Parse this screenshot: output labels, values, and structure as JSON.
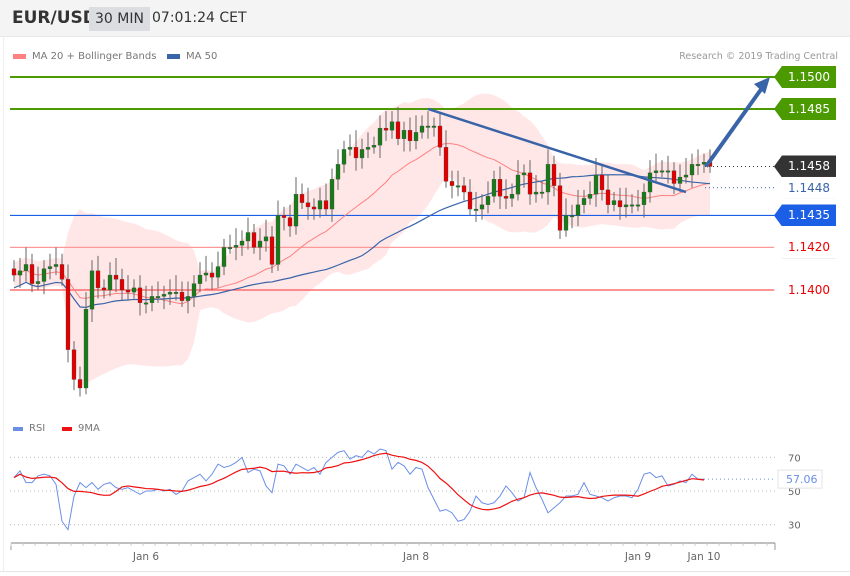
{
  "header": {
    "symbol": "EUR/USD",
    "timeframe": "30 MIN",
    "time": "07:01:24 CET"
  },
  "legend": {
    "ma20": "MA 20 + Bollinger Bands",
    "ma50": "MA 50",
    "copyright": "Research © 2019 Trading Central"
  },
  "rsi_legend": {
    "rsi": "RSI",
    "ma9": "9MA"
  },
  "colors": {
    "resistance": "#4a9a00",
    "pivot": "#1a5fe6",
    "support": "#ff5555",
    "support_light": "#ff9999",
    "up": "#1a7a1a",
    "down": "#e00000",
    "ma50": "#3a64a8",
    "ma20": "#ff8080",
    "band": "#ffe3e3",
    "rsi": "#6b8fe6",
    "rsi_ma": "#ee1111",
    "last": "#333333"
  },
  "chart_data": [
    {
      "type": "candlestick",
      "title": "EUR/USD",
      "closes": [
        1.1407,
        1.1409,
        1.1412,
        1.1403,
        1.1404,
        1.141,
        1.1411,
        1.1412,
        1.1405,
        1.1372,
        1.1358,
        1.1354,
        1.1391,
        1.1409,
        1.1401,
        1.14,
        1.1407,
        1.1405,
        1.14,
        1.1399,
        1.1401,
        1.1394,
        1.1394,
        1.1397,
        1.1397,
        1.1398,
        1.1399,
        1.1399,
        1.1395,
        1.1397,
        1.1403,
        1.1407,
        1.1408,
        1.1406,
        1.1411,
        1.142,
        1.142,
        1.1421,
        1.1423,
        1.1427,
        1.142,
        1.1423,
        1.1425,
        1.1412,
        1.1435,
        1.1434,
        1.143,
        1.1445,
        1.1441,
        1.1439,
        1.1438,
        1.1442,
        1.1438,
        1.1452,
        1.1459,
        1.1466,
        1.1467,
        1.1462,
        1.1466,
        1.1467,
        1.1468,
        1.1476,
        1.1475,
        1.1479,
        1.1471,
        1.1475,
        1.147,
        1.1474,
        1.1477,
        1.1477,
        1.1477,
        1.1467,
        1.1451,
        1.1449,
        1.1449,
        1.1446,
        1.1438,
        1.1438,
        1.144,
        1.1444,
        1.1452,
        1.1444,
        1.1443,
        1.1445,
        1.1454,
        1.1455,
        1.1445,
        1.1446,
        1.1446,
        1.1459,
        1.1449,
        1.1428,
        1.1435,
        1.1435,
        1.144,
        1.1443,
        1.1445,
        1.1454,
        1.1447,
        1.144,
        1.1442,
        1.1439,
        1.144,
        1.144,
        1.144,
        1.1446,
        1.1455,
        1.1456,
        1.1456,
        1.1456,
        1.145,
        1.1453,
        1.1454,
        1.1459,
        1.1459,
        1.146,
        1.1458
      ],
      "ylim": [
        1.134,
        1.151
      ],
      "levels": [
        {
          "label": "1.1500",
          "value": 1.15,
          "kind": "resistance"
        },
        {
          "label": "1.1485",
          "value": 1.1485,
          "kind": "resistance"
        },
        {
          "label": "1.1458",
          "value": 1.1458,
          "kind": "last"
        },
        {
          "label": "1.1448",
          "value": 1.1448,
          "kind": "ma50"
        },
        {
          "label": "1.1435",
          "value": 1.1435,
          "kind": "pivot"
        },
        {
          "label": "1.1420",
          "value": 1.142,
          "kind": "support"
        },
        {
          "label": "1.1400",
          "value": 1.14,
          "kind": "support"
        }
      ],
      "trendline": {
        "from": {
          "candle": 69,
          "price": 1.1485
        },
        "to": {
          "candle": 112,
          "price": 1.1446
        }
      },
      "forecast_arrow": {
        "from": {
          "candle": 115,
          "price": 1.1458
        },
        "to": {
          "candle": 126,
          "price": 1.15
        }
      },
      "x_ticks": [
        {
          "label": "Jan 6",
          "candle": 22
        },
        {
          "label": "Jan 8",
          "candle": 67
        },
        {
          "label": "Jan 9",
          "candle": 104
        },
        {
          "label": "Jan 10",
          "candle": 115
        }
      ]
    },
    {
      "type": "line",
      "series": [
        {
          "name": "RSI",
          "values": [
            58,
            62,
            55,
            55,
            59,
            60,
            59,
            54,
            32,
            27,
            47,
            55,
            52,
            55,
            51,
            54,
            55,
            52,
            51,
            52,
            50,
            48,
            50,
            50,
            51,
            50,
            51,
            48,
            50,
            56,
            58,
            60,
            56,
            60,
            66,
            64,
            65,
            67,
            70,
            61,
            63,
            62,
            53,
            49,
            66,
            65,
            60,
            66,
            64,
            62,
            64,
            60,
            67,
            70,
            73,
            74,
            69,
            71,
            70,
            74,
            72,
            75,
            74,
            63,
            67,
            65,
            60,
            64,
            63,
            52,
            45,
            38,
            39,
            37,
            32,
            33,
            38,
            47,
            43,
            42,
            43,
            47,
            53,
            49,
            44,
            46,
            61,
            52,
            45,
            37,
            40,
            43,
            47,
            47,
            48,
            55,
            48,
            47,
            46,
            44,
            46,
            47,
            47,
            46,
            51,
            60,
            61,
            58,
            59,
            53,
            54,
            56,
            55,
            60,
            57,
            57.06
          ]
        },
        {
          "name": "9MA",
          "values": []
        }
      ],
      "y_ticks": [
        "70",
        "50",
        "30"
      ],
      "last_value": "57.06",
      "ylim": [
        20,
        85
      ]
    }
  ]
}
